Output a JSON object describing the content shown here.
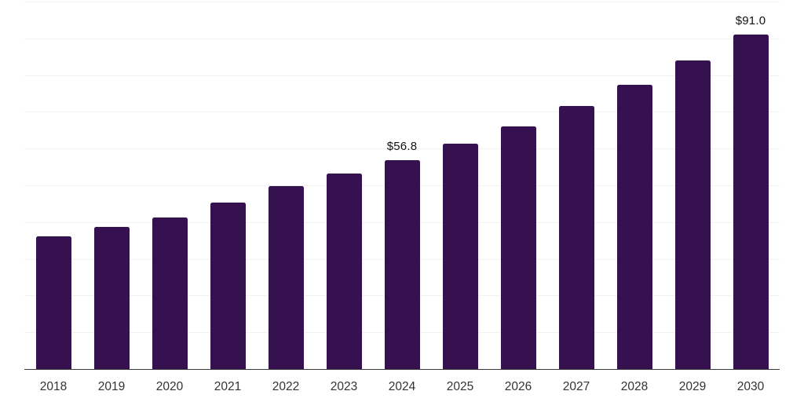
{
  "chart_data": {
    "type": "bar",
    "categories": [
      "2018",
      "2019",
      "2020",
      "2021",
      "2022",
      "2023",
      "2024",
      "2025",
      "2026",
      "2027",
      "2028",
      "2029",
      "2030"
    ],
    "values": [
      36.2,
      38.7,
      41.2,
      45.2,
      49.8,
      53.2,
      56.8,
      61.4,
      66.1,
      71.5,
      77.3,
      83.9,
      91.0
    ],
    "data_labels": {
      "2024": "$56.8",
      "2030": "$91.0"
    },
    "title": "",
    "xlabel": "",
    "ylabel": "",
    "ylim": [
      0,
      100
    ],
    "grid_step": 10,
    "grid": "horizontal-only",
    "legend": "none",
    "y_tick_labels_visible": false,
    "colors": {
      "bar": "#361150",
      "gridline": "#f2f2f3",
      "axis_line": "#3a3a3a",
      "data_label": "#111111",
      "tick_label": "#333333",
      "background": "#ffffff"
    }
  }
}
